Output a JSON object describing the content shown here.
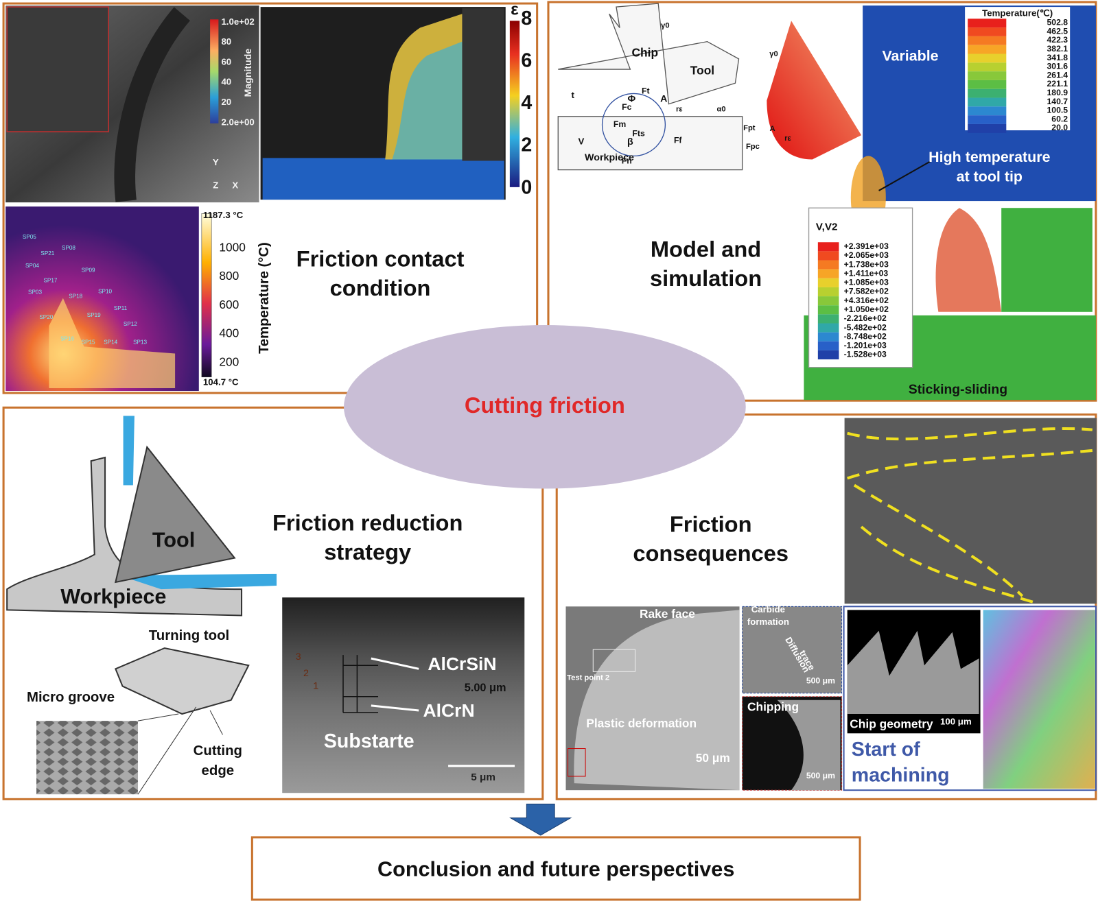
{
  "center": "Cutting friction",
  "conclusion": "Conclusion and future perspectives",
  "friction_contact": {
    "title": [
      "Friction contact",
      "condition"
    ],
    "magnitude_bar": {
      "label": "Magnitude",
      "ticks": [
        "1.0e+02",
        "80",
        "60",
        "40",
        "20",
        "2.0e+00"
      ]
    },
    "axes": [
      "Y",
      "Z",
      "X"
    ],
    "strain_bar": {
      "label": "ε",
      "ticks": [
        "8",
        "6",
        "4",
        "2",
        "0"
      ]
    },
    "thermal_bar": {
      "label": "Temperature (°C)",
      "max": "1187.3 °C",
      "ticks": [
        "1000",
        "800",
        "600",
        "400",
        "200"
      ],
      "min": "104.7 °C"
    },
    "points": [
      "SP05",
      "SP21",
      "SP08",
      "SP04",
      "SP09",
      "SP17",
      "SP18",
      "SP10",
      "SP03",
      "SP11",
      "SP20",
      "SP19",
      "SP12",
      "SP15",
      "SP14",
      "SP13",
      "SP16"
    ]
  },
  "model_simulation": {
    "title": [
      "Model and",
      "simulation"
    ],
    "diagram_labels": [
      "Chip",
      "Tool",
      "t",
      "V",
      "Workpiece",
      "A",
      "Φ",
      "β",
      "Fn",
      "Ff",
      "Ft",
      "Fc",
      "Fm",
      "Fts",
      "γ0",
      "α0",
      "rε"
    ],
    "tool_labels": [
      "γ0",
      "Fpt",
      "Fpc",
      "A",
      "rε"
    ],
    "temperature_map": {
      "label": "Variable",
      "legend_title": "Temperature(℃)",
      "levels": [
        "502.8",
        "462.5",
        "422.3",
        "382.1",
        "341.8",
        "301.6",
        "261.4",
        "221.1",
        "180.9",
        "140.7",
        "100.5",
        "60.2",
        "20.0"
      ],
      "note": [
        "High temperature",
        "at tool tip"
      ]
    },
    "velocity_map": {
      "legend_title": "V,V2",
      "levels": [
        "+2.391e+03",
        "+2.065e+03",
        "+1.738e+03",
        "+1.411e+03",
        "+1.085e+03",
        "+7.582e+02",
        "+4.316e+02",
        "+1.050e+02",
        "-2.216e+02",
        "-5.482e+02",
        "-8.748e+02",
        "-1.201e+03",
        "-1.528e+03"
      ],
      "note": "Sticking-sliding"
    }
  },
  "friction_reduction": {
    "title": [
      "Friction reduction",
      "strategy"
    ],
    "labels": {
      "tool": "Tool",
      "workpiece": "Workpiece",
      "turning_tool": "Turning tool",
      "micro_groove": "Micro groove",
      "cutting_edge": [
        "Cutting",
        "edge"
      ]
    },
    "coating": {
      "layers": [
        "AlCrSiN",
        "AlCrN"
      ],
      "thickness": "5.00 μm",
      "substrate": "Substarte",
      "scale": "5 μm",
      "points": [
        "3",
        "2",
        "1"
      ]
    }
  },
  "friction_consequences": {
    "title": [
      "Friction",
      "consequences"
    ],
    "labels": {
      "rake_face": "Rake face",
      "test_point": "Test point 2",
      "plastic_deformation": "Plastic deformation",
      "scale_main": "50 μm",
      "carbide": [
        "Carbide",
        "formation"
      ],
      "diffusion": [
        "Diffusion",
        "trace"
      ],
      "scale_carbide": "500 μm",
      "chipping": "Chipping",
      "scale_chipping": "500 μm",
      "chip_geometry": "Chip geometry",
      "scale_chip": "100 μm",
      "start": [
        "Start of",
        "machining"
      ]
    }
  }
}
